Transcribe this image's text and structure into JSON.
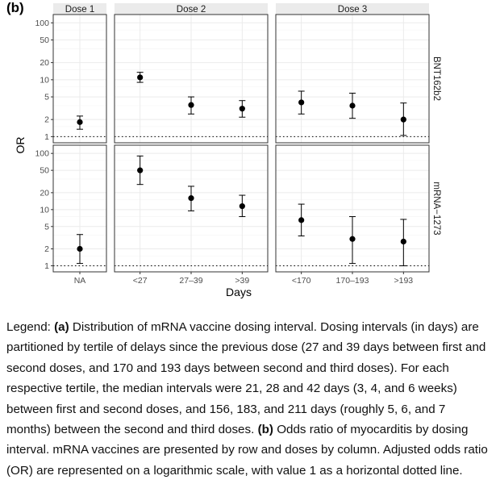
{
  "figure": {
    "panel_label": "(b)"
  },
  "chart_data": {
    "type": "scatter",
    "title": "",
    "xlabel": "Days",
    "ylabel": "OR",
    "yscale": "log",
    "ylim": [
      0.78,
      140
    ],
    "yticks": [
      1,
      2,
      5,
      10,
      20,
      50,
      100
    ],
    "ytick_labels": [
      "1",
      "2",
      "5",
      "10",
      "20",
      "50",
      "100"
    ],
    "reference_line": {
      "value": 1,
      "style": "dotted"
    },
    "columns": [
      {
        "name": "Dose 1",
        "categories": [
          "NA"
        ]
      },
      {
        "name": "Dose 2",
        "categories": [
          "<27",
          "27–39",
          ">39"
        ]
      },
      {
        "name": "Dose 3",
        "categories": [
          "<170",
          "170–193",
          ">193"
        ]
      }
    ],
    "rows": [
      {
        "name": "BNT162b2",
        "series": [
          {
            "panel": "Dose 1",
            "points": [
              {
                "x": "NA",
                "or": 1.8,
                "lo": 1.35,
                "hi": 2.3
              }
            ]
          },
          {
            "panel": "Dose 2",
            "points": [
              {
                "x": "<27",
                "or": 11.0,
                "lo": 9.0,
                "hi": 13.5
              },
              {
                "x": "27–39",
                "or": 3.6,
                "lo": 2.5,
                "hi": 5.0
              },
              {
                "x": ">39",
                "or": 3.1,
                "lo": 2.2,
                "hi": 4.3
              }
            ]
          },
          {
            "panel": "Dose 3",
            "points": [
              {
                "x": "<170",
                "or": 4.0,
                "lo": 2.5,
                "hi": 6.3
              },
              {
                "x": "170–193",
                "or": 3.5,
                "lo": 2.1,
                "hi": 5.8
              },
              {
                "x": ">193",
                "or": 2.0,
                "lo": 1.05,
                "hi": 3.9
              }
            ]
          }
        ]
      },
      {
        "name": "mRNA−1273",
        "series": [
          {
            "panel": "Dose 1",
            "points": [
              {
                "x": "NA",
                "or": 2.0,
                "lo": 1.1,
                "hi": 3.6
              }
            ]
          },
          {
            "panel": "Dose 2",
            "points": [
              {
                "x": "<27",
                "or": 50,
                "lo": 28,
                "hi": 90
              },
              {
                "x": "27–39",
                "or": 16,
                "lo": 9.5,
                "hi": 26
              },
              {
                "x": ">39",
                "or": 11.5,
                "lo": 7.5,
                "hi": 18
              }
            ]
          },
          {
            "panel": "Dose 3",
            "points": [
              {
                "x": "<170",
                "or": 6.5,
                "lo": 3.4,
                "hi": 12.5
              },
              {
                "x": "170–193",
                "or": 3.0,
                "lo": 1.1,
                "hi": 7.5
              },
              {
                "x": ">193",
                "or": 2.7,
                "lo": 1.0,
                "hi": 6.7
              }
            ]
          }
        ]
      }
    ]
  },
  "legend": {
    "prefix": "Legend: ",
    "a_label": "(a)",
    "a_text": " Distribution of mRNA vaccine dosing interval. Dosing intervals (in days) are partitioned by tertile of delays since the previous dose (27 and 39 days between first and second doses, and 170 and 193 days between second and third doses). For each respective tertile, the median intervals were 21, 28 and 42 days (3, 4, and 6 weeks) between first and second doses, and 156, 183, and 211 days (roughly 5, 6, and 7 months) between the second and third doses.",
    "b_label": "(b)",
    "b_text": " Odds ratio of myocarditis by dosing interval. mRNA vaccines are presented by row and doses by column. Adjusted odds ratio (OR) are represented on a logarithmic scale, with value 1 as a horizontal dotted line."
  },
  "colors": {
    "strip_fill": "#ebebeb",
    "panel_border": "#333333",
    "grid_major": "#ebebeb",
    "grid_minor": "#f5f5f5",
    "point": "#000000",
    "tick_text": "#4d4d4d"
  }
}
